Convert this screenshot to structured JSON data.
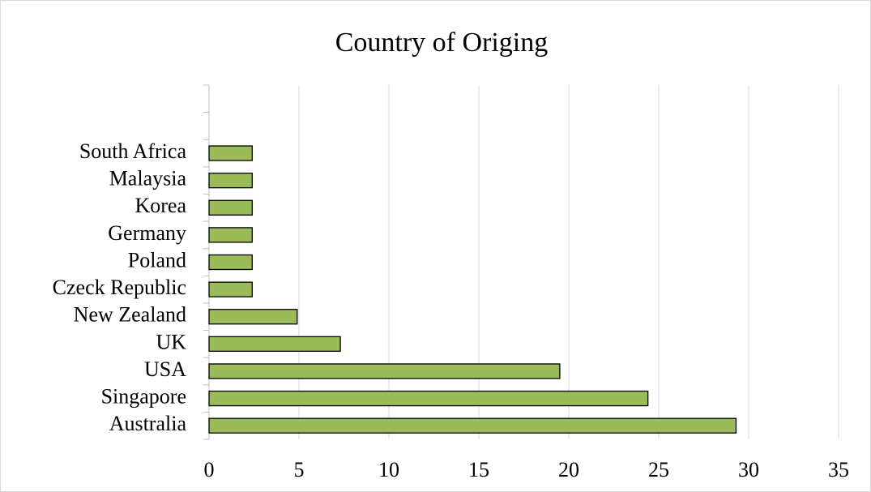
{
  "chart_data": {
    "type": "barh",
    "title": "Country of Origing",
    "categories": [
      "Australia",
      "Singapore",
      "USA",
      "UK",
      "New Zealand",
      "Czeck Republic",
      "Poland",
      "Germany",
      "Korea",
      "Malaysia",
      "South Africa",
      null,
      null
    ],
    "values": [
      29.3,
      24.4,
      19.5,
      7.3,
      4.9,
      2.4,
      2.4,
      2.4,
      2.4,
      2.4,
      2.4,
      null,
      null
    ],
    "color": "#9bbb59",
    "xlim": [
      0,
      35
    ],
    "xticks": [
      0,
      5,
      10,
      15,
      20,
      25,
      30,
      35
    ],
    "grid": true
  }
}
